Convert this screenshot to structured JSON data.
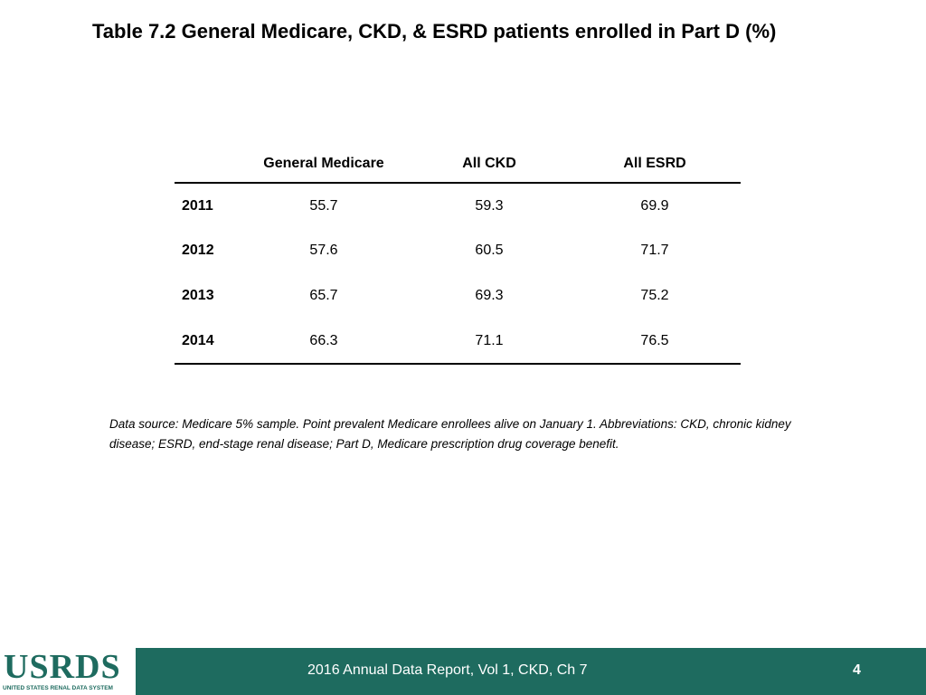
{
  "title": "Table 7.2 General Medicare, CKD, & ESRD patients enrolled in Part D (%)",
  "table": {
    "headers": [
      "",
      "General Medicare",
      "All CKD",
      "All ESRD"
    ],
    "rows": [
      {
        "year": "2011",
        "general_medicare": "55.7",
        "all_ckd": "59.3",
        "all_esrd": "69.9"
      },
      {
        "year": "2012",
        "general_medicare": "57.6",
        "all_ckd": "60.5",
        "all_esrd": "71.7"
      },
      {
        "year": "2013",
        "general_medicare": "65.7",
        "all_ckd": "69.3",
        "all_esrd": "75.2"
      },
      {
        "year": "2014",
        "general_medicare": "66.3",
        "all_ckd": "71.1",
        "all_esrd": "76.5"
      }
    ]
  },
  "footnote": "Data source: Medicare 5% sample. Point prevalent Medicare enrollees alive on January 1. Abbreviations: CKD, chronic kidney disease; ESRD, end-stage renal disease; Part D, Medicare prescription drug coverage benefit.",
  "footer": {
    "logo_text": "USRDS",
    "logo_subtext": "UNITED STATES RENAL DATA SYSTEM",
    "report_label": "2016 Annual Data Report, Vol 1, CKD, Ch 7",
    "page_number": "4",
    "bar_color": "#1e6b5f"
  }
}
